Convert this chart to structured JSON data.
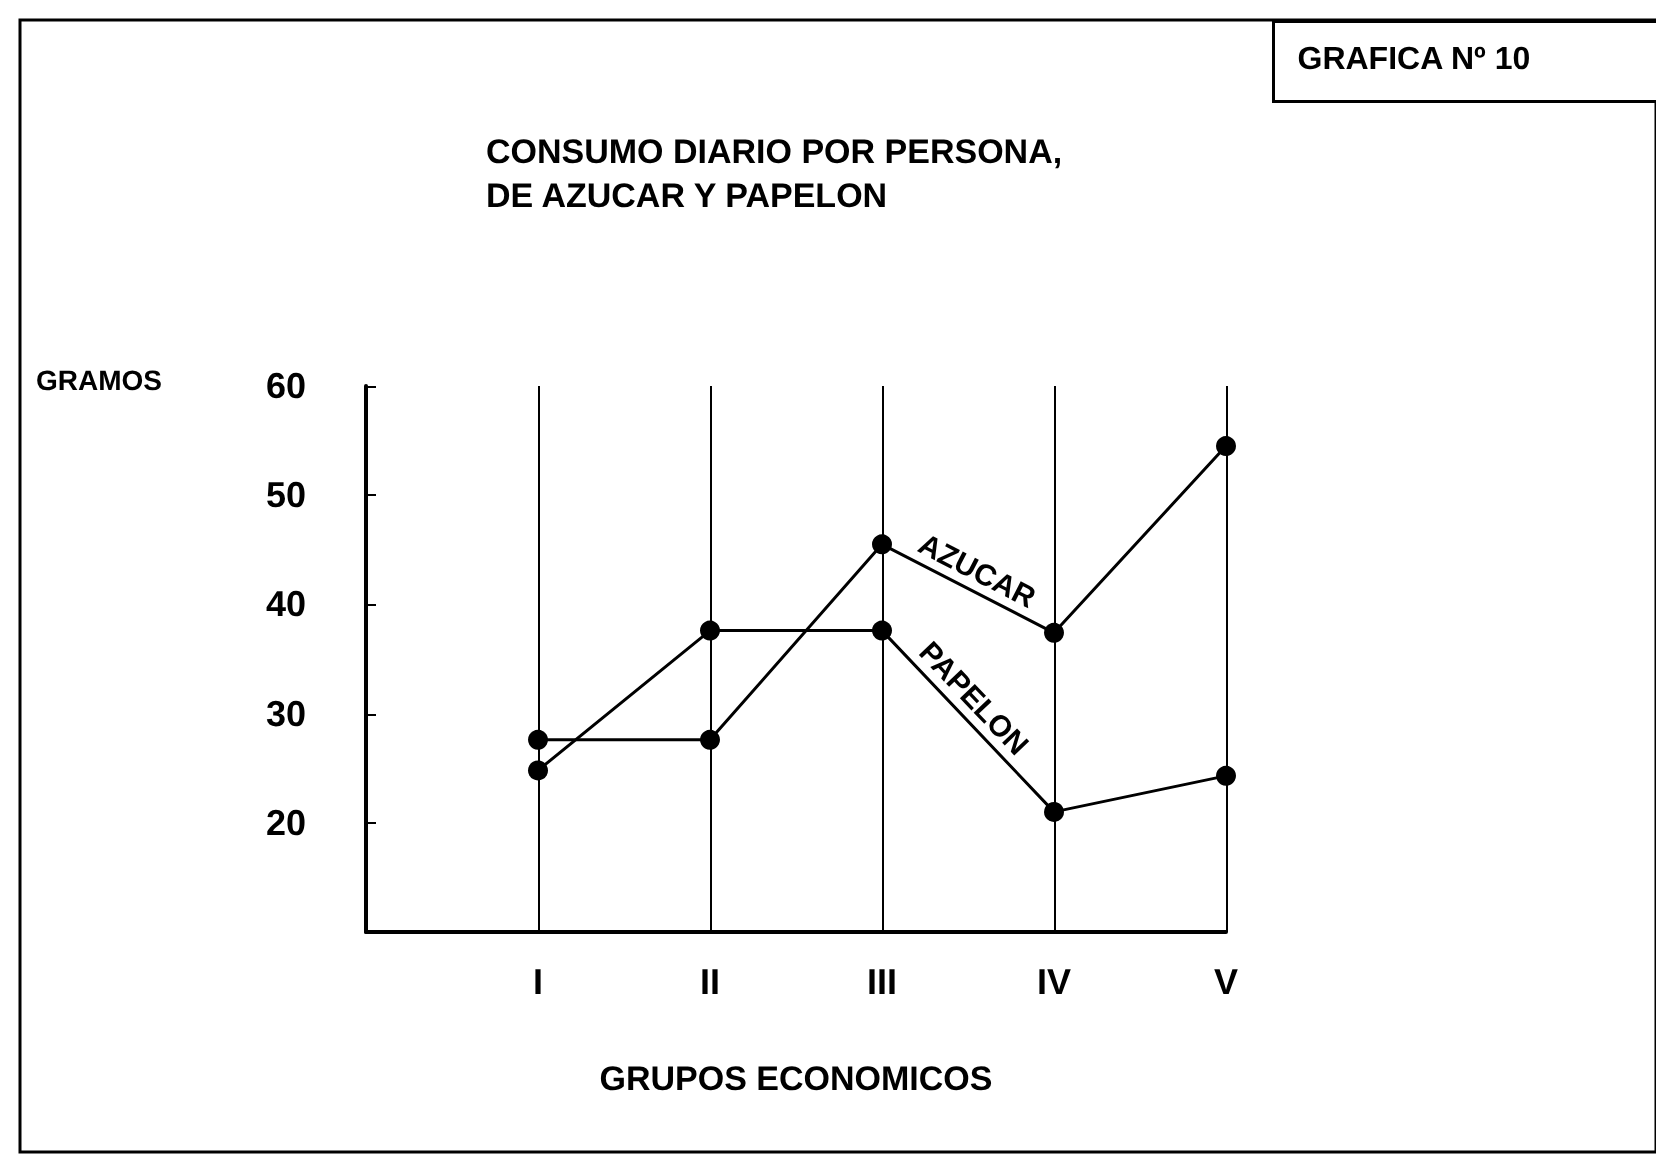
{
  "chart_data": {
    "type": "line",
    "title": "CONSUMO DIARIO POR PERSONA,\nDE AZUCAR Y PAPELON",
    "annotations": [
      "GRAFICA Nº 10"
    ],
    "xlabel": "GRUPOS ECONOMICOS",
    "ylabel": "GRAMOS",
    "categories": [
      null,
      "I",
      "II",
      "III",
      "IV",
      "V"
    ],
    "series": [
      {
        "name": "AZUCAR",
        "color": "#000000",
        "values": [
          null,
          27.6,
          27.6,
          45.5,
          37.4,
          54.5
        ]
      },
      {
        "name": "PAPELON",
        "color": "#000000",
        "values": [
          null,
          24.8,
          37.6,
          37.6,
          21,
          24.3
        ]
      }
    ],
    "ylim": [
      10,
      60
    ],
    "yticks": [
      {
        "value": 10,
        "label": null
      },
      20,
      30,
      40,
      50,
      60
    ],
    "grid": "x",
    "legend": false,
    "marker": "circle",
    "line_style": "solid"
  }
}
